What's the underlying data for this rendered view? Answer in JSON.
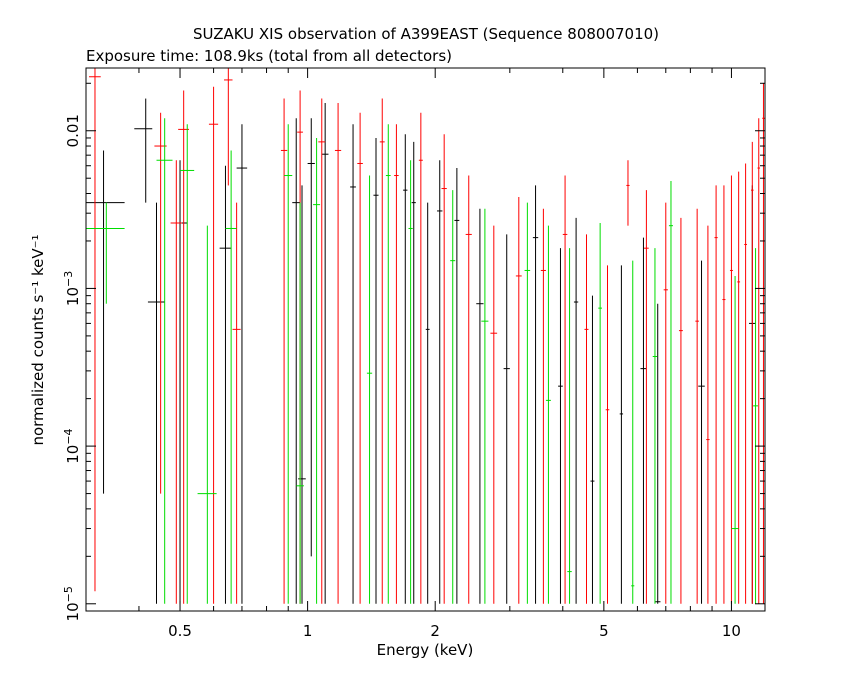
{
  "chart_data": {
    "type": "scatter",
    "title": "SUZAKU XIS observation of A399EAST (Sequence 808007010)",
    "subtitle": "Exposure time: 108.9ks (total from all detectors)",
    "xlabel": "Energy (keV)",
    "ylabel": "normalized counts s⁻¹ keV⁻¹",
    "xscale": "log",
    "yscale": "log",
    "xlim": [
      0.3,
      12
    ],
    "ylim": [
      9e-06,
      0.025
    ],
    "grid": false,
    "x_ticks": [
      {
        "value": 0.5,
        "label": "0.5"
      },
      {
        "value": 1,
        "label": "1"
      },
      {
        "value": 2,
        "label": "2"
      },
      {
        "value": 5,
        "label": "5"
      },
      {
        "value": 10,
        "label": "10"
      }
    ],
    "y_ticks": [
      {
        "value": 1e-05,
        "mantissa": "10",
        "exp": "−5"
      },
      {
        "value": 0.0001,
        "mantissa": "10",
        "exp": "−4"
      },
      {
        "value": 0.001,
        "mantissa": "10",
        "exp": "−3"
      },
      {
        "value": 0.01,
        "mantissa": "0.01",
        "exp": ""
      }
    ],
    "series": [
      {
        "color": "#000000",
        "points": [
          {
            "x": 0.33,
            "xlo": 0.3,
            "xhi": 0.37,
            "y": 0.0035,
            "ylo": 5e-05,
            "yhi": 0.0075
          },
          {
            "x": 0.415,
            "xlo": 0.39,
            "xhi": 0.43,
            "y": 0.0103,
            "ylo": 0.0035,
            "yhi": 0.016
          },
          {
            "x": 0.44,
            "xlo": 0.42,
            "xhi": 0.46,
            "y": 0.00082,
            "ylo": 1e-05,
            "yhi": 0.0035
          },
          {
            "x": 0.5,
            "xlo": 0.48,
            "xhi": 0.52,
            "y": 0.0026,
            "ylo": 1e-05,
            "yhi": 0.0065
          },
          {
            "x": 0.64,
            "xlo": 0.62,
            "xhi": 0.66,
            "y": 0.0018,
            "ylo": 1e-05,
            "yhi": 0.006
          },
          {
            "x": 0.7,
            "xlo": 0.68,
            "xhi": 0.72,
            "y": 0.0058,
            "ylo": 1e-05,
            "yhi": 0.011
          },
          {
            "x": 0.94,
            "xlo": 0.92,
            "xhi": 0.96,
            "y": 0.0035,
            "ylo": 1e-05,
            "yhi": 0.012
          },
          {
            "x": 0.97,
            "xlo": 0.95,
            "xhi": 0.99,
            "y": 6.2e-05,
            "ylo": 1e-05,
            "yhi": 0.0045
          },
          {
            "x": 1.02,
            "xlo": 1.0,
            "xhi": 1.04,
            "y": 0.0062,
            "ylo": 2e-05,
            "yhi": 0.012
          },
          {
            "x": 1.1,
            "xlo": 1.08,
            "xhi": 1.12,
            "y": 0.0071,
            "ylo": 1e-05,
            "yhi": 0.015
          },
          {
            "x": 1.28,
            "xlo": 1.26,
            "xhi": 1.3,
            "y": 0.0044,
            "ylo": 1e-05,
            "yhi": 0.011
          },
          {
            "x": 1.45,
            "xlo": 1.43,
            "xhi": 1.47,
            "y": 0.0039,
            "ylo": 1e-05,
            "yhi": 0.009
          },
          {
            "x": 1.7,
            "xlo": 1.68,
            "xhi": 1.72,
            "y": 0.0042,
            "ylo": 1e-05,
            "yhi": 0.0095
          },
          {
            "x": 1.78,
            "xlo": 1.76,
            "xhi": 1.8,
            "y": 0.0035,
            "ylo": 1e-05,
            "yhi": 0.0085
          },
          {
            "x": 1.92,
            "xlo": 1.9,
            "xhi": 1.94,
            "y": 0.00055,
            "ylo": 1e-05,
            "yhi": 0.0035
          },
          {
            "x": 2.05,
            "xlo": 2.02,
            "xhi": 2.08,
            "y": 0.0031,
            "ylo": 1e-05,
            "yhi": 0.0065
          },
          {
            "x": 2.25,
            "xlo": 2.22,
            "xhi": 2.28,
            "y": 0.0027,
            "ylo": 1e-05,
            "yhi": 0.0058
          },
          {
            "x": 2.55,
            "xlo": 2.5,
            "xhi": 2.6,
            "y": 0.0008,
            "ylo": 1e-05,
            "yhi": 0.0032
          },
          {
            "x": 2.95,
            "xlo": 2.9,
            "xhi": 3.0,
            "y": 0.00031,
            "ylo": 1e-05,
            "yhi": 0.0022
          },
          {
            "x": 3.45,
            "xlo": 3.4,
            "xhi": 3.5,
            "y": 0.0021,
            "ylo": 1e-05,
            "yhi": 0.0045
          },
          {
            "x": 3.95,
            "xlo": 3.9,
            "xhi": 4.0,
            "y": 0.00024,
            "ylo": 1e-05,
            "yhi": 0.0018
          },
          {
            "x": 4.3,
            "xlo": 4.25,
            "xhi": 4.35,
            "y": 0.00082,
            "ylo": 1e-05,
            "yhi": 0.0028
          },
          {
            "x": 4.7,
            "xlo": 4.65,
            "xhi": 4.75,
            "y": 6e-05,
            "ylo": 1e-05,
            "yhi": 0.0009
          },
          {
            "x": 5.5,
            "xlo": 5.45,
            "xhi": 5.55,
            "y": 0.00016,
            "ylo": 1e-05,
            "yhi": 0.0014
          },
          {
            "x": 6.2,
            "xlo": 6.1,
            "xhi": 6.3,
            "y": 0.00031,
            "ylo": 1e-05,
            "yhi": 0.0021
          },
          {
            "x": 6.7,
            "xlo": 6.6,
            "xhi": 6.8,
            "y": 1.03e-05,
            "ylo": 1e-05,
            "yhi": 0.0008
          },
          {
            "x": 8.5,
            "xlo": 8.35,
            "xhi": 8.65,
            "y": 0.00024,
            "ylo": 1e-05,
            "yhi": 0.0015
          },
          {
            "x": 11.2,
            "xlo": 11.0,
            "xhi": 11.4,
            "y": 0.0006,
            "ylo": 1e-05,
            "yhi": 0.0045
          }
        ]
      },
      {
        "color": "#ff0000",
        "points": [
          {
            "x": 0.315,
            "xlo": 0.305,
            "xhi": 0.325,
            "y": 0.022,
            "ylo": 1.2e-05,
            "yhi": 0.028
          },
          {
            "x": 0.45,
            "xlo": 0.435,
            "xhi": 0.465,
            "y": 0.008,
            "ylo": 5e-05,
            "yhi": 0.013
          },
          {
            "x": 0.49,
            "xlo": 0.475,
            "xhi": 0.505,
            "y": 0.0026,
            "ylo": 1e-05,
            "yhi": 0.0065
          },
          {
            "x": 0.51,
            "xlo": 0.495,
            "xhi": 0.525,
            "y": 0.0102,
            "ylo": 1e-05,
            "yhi": 0.018
          },
          {
            "x": 0.6,
            "xlo": 0.585,
            "xhi": 0.615,
            "y": 0.011,
            "ylo": 1e-05,
            "yhi": 0.019
          },
          {
            "x": 0.65,
            "xlo": 0.635,
            "xhi": 0.665,
            "y": 0.021,
            "ylo": 0.0045,
            "yhi": 0.025
          },
          {
            "x": 0.68,
            "xlo": 0.665,
            "xhi": 0.695,
            "y": 0.00055,
            "ylo": 1e-05,
            "yhi": 0.0035
          },
          {
            "x": 0.88,
            "xlo": 0.865,
            "xhi": 0.895,
            "y": 0.0075,
            "ylo": 1e-05,
            "yhi": 0.016
          },
          {
            "x": 0.96,
            "xlo": 0.945,
            "xhi": 0.975,
            "y": 0.0098,
            "ylo": 1e-05,
            "yhi": 0.018
          },
          {
            "x": 1.08,
            "xlo": 1.06,
            "xhi": 1.1,
            "y": 0.0085,
            "ylo": 1e-05,
            "yhi": 0.016
          },
          {
            "x": 1.18,
            "xlo": 1.16,
            "xhi": 1.2,
            "y": 0.0075,
            "ylo": 1e-05,
            "yhi": 0.015
          },
          {
            "x": 1.33,
            "xlo": 1.31,
            "xhi": 1.35,
            "y": 0.0062,
            "ylo": 1e-05,
            "yhi": 0.013
          },
          {
            "x": 1.5,
            "xlo": 1.48,
            "xhi": 1.52,
            "y": 0.0085,
            "ylo": 1e-05,
            "yhi": 0.016
          },
          {
            "x": 1.62,
            "xlo": 1.6,
            "xhi": 1.64,
            "y": 0.0052,
            "ylo": 1e-05,
            "yhi": 0.011
          },
          {
            "x": 1.85,
            "xlo": 1.83,
            "xhi": 1.87,
            "y": 0.0065,
            "ylo": 1e-05,
            "yhi": 0.013
          },
          {
            "x": 2.1,
            "xlo": 2.07,
            "xhi": 2.13,
            "y": 0.0043,
            "ylo": 1e-05,
            "yhi": 0.0095
          },
          {
            "x": 2.4,
            "xlo": 2.36,
            "xhi": 2.44,
            "y": 0.0022,
            "ylo": 1e-05,
            "yhi": 0.0052
          },
          {
            "x": 2.75,
            "xlo": 2.7,
            "xhi": 2.8,
            "y": 0.00052,
            "ylo": 1e-05,
            "yhi": 0.0025
          },
          {
            "x": 3.15,
            "xlo": 3.1,
            "xhi": 3.2,
            "y": 0.0012,
            "ylo": 1e-05,
            "yhi": 0.0038
          },
          {
            "x": 3.6,
            "xlo": 3.55,
            "xhi": 3.65,
            "y": 0.0013,
            "ylo": 1e-05,
            "yhi": 0.0032
          },
          {
            "x": 4.05,
            "xlo": 4.0,
            "xhi": 4.1,
            "y": 0.0022,
            "ylo": 1e-05,
            "yhi": 0.0052
          },
          {
            "x": 4.55,
            "xlo": 4.5,
            "xhi": 4.6,
            "y": 0.00055,
            "ylo": 1e-05,
            "yhi": 0.0022
          },
          {
            "x": 5.1,
            "xlo": 5.05,
            "xhi": 5.15,
            "y": 0.00017,
            "ylo": 1e-05,
            "yhi": 0.0014
          },
          {
            "x": 5.7,
            "xlo": 5.65,
            "xhi": 5.75,
            "y": 0.0045,
            "ylo": 0.0025,
            "yhi": 0.0065
          },
          {
            "x": 6.3,
            "xlo": 6.22,
            "xhi": 6.38,
            "y": 0.0018,
            "ylo": 1e-05,
            "yhi": 0.0042
          },
          {
            "x": 7.0,
            "xlo": 6.92,
            "xhi": 7.08,
            "y": 0.00098,
            "ylo": 1e-05,
            "yhi": 0.0035
          },
          {
            "x": 7.6,
            "xlo": 7.52,
            "xhi": 7.68,
            "y": 0.00054,
            "ylo": 1e-05,
            "yhi": 0.0028
          },
          {
            "x": 8.3,
            "xlo": 8.22,
            "xhi": 8.38,
            "y": 0.00062,
            "ylo": 1e-05,
            "yhi": 0.0032
          },
          {
            "x": 8.8,
            "xlo": 8.72,
            "xhi": 8.88,
            "y": 0.00011,
            "ylo": 1e-05,
            "yhi": 0.0025
          },
          {
            "x": 9.2,
            "xlo": 9.12,
            "xhi": 9.28,
            "y": 0.0021,
            "ylo": 1e-05,
            "yhi": 0.0045
          },
          {
            "x": 9.6,
            "xlo": 9.52,
            "xhi": 9.68,
            "y": 0.00085,
            "ylo": 1e-05,
            "yhi": 0.0045
          },
          {
            "x": 10.0,
            "xlo": 9.92,
            "xhi": 10.08,
            "y": 0.0013,
            "ylo": 1e-05,
            "yhi": 0.0052
          },
          {
            "x": 10.4,
            "xlo": 10.32,
            "xhi": 10.48,
            "y": 0.0011,
            "ylo": 1e-05,
            "yhi": 0.0055
          },
          {
            "x": 10.8,
            "xlo": 10.72,
            "xhi": 10.88,
            "y": 0.0019,
            "ylo": 1e-05,
            "yhi": 0.0062
          },
          {
            "x": 11.2,
            "xlo": 11.12,
            "xhi": 11.28,
            "y": 0.0042,
            "ylo": 1e-05,
            "yhi": 0.0085
          },
          {
            "x": 11.6,
            "xlo": 11.52,
            "xhi": 11.68,
            "y": 0.0058,
            "ylo": 1e-05,
            "yhi": 0.012
          },
          {
            "x": 11.9,
            "xlo": 11.82,
            "xhi": 11.98,
            "y": 0.012,
            "ylo": 1e-05,
            "yhi": 0.02
          }
        ]
      },
      {
        "color": "#00dd00",
        "points": [
          {
            "x": 0.335,
            "xlo": 0.3,
            "xhi": 0.37,
            "y": 0.0024,
            "ylo": 0.0008,
            "yhi": 0.0035
          },
          {
            "x": 0.46,
            "xlo": 0.44,
            "xhi": 0.48,
            "y": 0.0065,
            "ylo": 1e-05,
            "yhi": 0.012
          },
          {
            "x": 0.52,
            "xlo": 0.5,
            "xhi": 0.54,
            "y": 0.0056,
            "ylo": 1e-05,
            "yhi": 0.011
          },
          {
            "x": 0.58,
            "xlo": 0.55,
            "xhi": 0.61,
            "y": 5e-05,
            "ylo": 1e-05,
            "yhi": 0.0025
          },
          {
            "x": 0.66,
            "xlo": 0.64,
            "xhi": 0.68,
            "y": 0.0024,
            "ylo": 1e-05,
            "yhi": 0.0075
          },
          {
            "x": 0.9,
            "xlo": 0.88,
            "xhi": 0.92,
            "y": 0.0052,
            "ylo": 1e-05,
            "yhi": 0.011
          },
          {
            "x": 0.96,
            "xlo": 0.94,
            "xhi": 0.98,
            "y": 5.6e-05,
            "ylo": 1e-05,
            "yhi": 0.0035
          },
          {
            "x": 1.05,
            "xlo": 1.03,
            "xhi": 1.07,
            "y": 0.0034,
            "ylo": 1e-05,
            "yhi": 0.009
          },
          {
            "x": 1.4,
            "xlo": 1.38,
            "xhi": 1.42,
            "y": 0.00029,
            "ylo": 1e-05,
            "yhi": 0.0052
          },
          {
            "x": 1.55,
            "xlo": 1.53,
            "xhi": 1.57,
            "y": 0.0052,
            "ylo": 1e-05,
            "yhi": 0.011
          },
          {
            "x": 1.75,
            "xlo": 1.73,
            "xhi": 1.77,
            "y": 0.0024,
            "ylo": 1e-05,
            "yhi": 0.0065
          },
          {
            "x": 2.2,
            "xlo": 2.17,
            "xhi": 2.23,
            "y": 0.0015,
            "ylo": 1e-05,
            "yhi": 0.0042
          },
          {
            "x": 2.62,
            "xlo": 2.57,
            "xhi": 2.67,
            "y": 0.00062,
            "ylo": 1e-05,
            "yhi": 0.0032
          },
          {
            "x": 3.3,
            "xlo": 3.25,
            "xhi": 3.35,
            "y": 0.0013,
            "ylo": 1e-05,
            "yhi": 0.0035
          },
          {
            "x": 3.7,
            "xlo": 3.65,
            "xhi": 3.75,
            "y": 0.000195,
            "ylo": 1e-05,
            "yhi": 0.0025
          },
          {
            "x": 4.15,
            "xlo": 4.1,
            "xhi": 4.2,
            "y": 1.6e-05,
            "ylo": 1e-05,
            "yhi": 0.0018
          },
          {
            "x": 4.9,
            "xlo": 4.85,
            "xhi": 4.95,
            "y": 0.00075,
            "ylo": 1e-05,
            "yhi": 0.0026
          },
          {
            "x": 5.85,
            "xlo": 5.8,
            "xhi": 5.9,
            "y": 1.3e-05,
            "ylo": 1e-05,
            "yhi": 0.0015
          },
          {
            "x": 6.6,
            "xlo": 6.52,
            "xhi": 6.68,
            "y": 0.00037,
            "ylo": 1e-05,
            "yhi": 0.0018
          },
          {
            "x": 7.2,
            "xlo": 7.12,
            "xhi": 7.28,
            "y": 0.0025,
            "ylo": 1e-05,
            "yhi": 0.0048
          },
          {
            "x": 10.2,
            "xlo": 10.0,
            "xhi": 10.4,
            "y": 3e-05,
            "ylo": 1e-05,
            "yhi": 0.0012
          },
          {
            "x": 11.4,
            "xlo": 11.25,
            "xhi": 11.55,
            "y": 0.00018,
            "ylo": 1e-05,
            "yhi": 0.0018
          }
        ]
      }
    ]
  }
}
